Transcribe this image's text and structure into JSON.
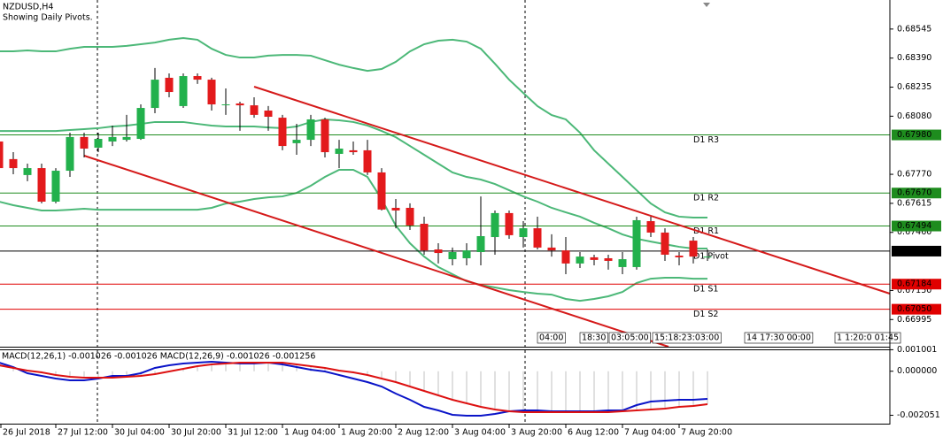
{
  "chart_data": {
    "type": "candlestick",
    "title": "NZDUSD,H4",
    "subtitle": "Showing Daily Pivots.",
    "categories": [
      "26 Jul 2018",
      null,
      null,
      null,
      "27 Jul 12:00",
      null,
      null,
      null,
      "30 Jul 04:00",
      null,
      null,
      null,
      "30 Jul 20:00",
      null,
      null,
      null,
      "31 Jul 12:00",
      null,
      null,
      null,
      "1 Aug 04:00",
      null,
      null,
      null,
      "1 Aug 20:00",
      null,
      null,
      null,
      "2 Aug 12:00",
      null,
      null,
      null,
      "3 Aug 04:00",
      null,
      null,
      null,
      "3 Aug 20:00",
      null,
      null,
      null,
      "6 Aug 12:00",
      null,
      null,
      null,
      "7 Aug 04:00",
      null,
      null,
      null,
      "7 Aug 20:00",
      null,
      null
    ],
    "open": [
      0.67945,
      0.67851,
      0.67766,
      0.67803,
      0.67624,
      0.67789,
      0.67969,
      0.67912,
      0.67945,
      0.67954,
      0.67959,
      0.68124,
      0.68285,
      0.68134,
      0.68294,
      0.68275,
      0.68143,
      0.68148,
      0.68138,
      0.6811,
      0.68072,
      0.67936,
      0.67954,
      0.68063,
      0.67879,
      0.67898,
      0.67898,
      0.6778,
      0.67591,
      0.67591,
      0.67506,
      0.67369,
      0.67317,
      0.67322,
      0.67355,
      0.67435,
      0.67563,
      0.67435,
      0.67482,
      0.67379,
      0.67364,
      0.67294,
      0.67327,
      0.67322,
      0.67275,
      0.67275,
      0.6752,
      0.67459,
      0.67336,
      0.67416,
      0.67331
    ],
    "high": [
      0.67969,
      0.67888,
      0.67827,
      0.67827,
      0.67803,
      0.67992,
      0.67992,
      0.67992,
      0.6803,
      0.68087,
      0.68143,
      0.68337,
      0.68308,
      0.68308,
      0.68308,
      0.68285,
      0.68228,
      0.68157,
      0.68181,
      0.68134,
      0.68087,
      0.68039,
      0.68087,
      0.68072,
      0.67954,
      0.67945,
      0.67954,
      0.67803,
      0.67638,
      0.67615,
      0.67544,
      0.67402,
      0.67379,
      0.67402,
      0.67652,
      0.67577,
      0.67577,
      0.6752,
      0.67544,
      0.6745,
      0.67435,
      0.67355,
      0.67341,
      0.67341,
      0.67355,
      0.67544,
      0.67544,
      0.67482,
      0.67355,
      0.67435,
      0.67369
    ],
    "low": [
      0.6778,
      0.6777,
      0.67733,
      0.67615,
      0.67615,
      0.67756,
      0.6786,
      0.67888,
      0.67921,
      0.67945,
      0.67954,
      0.68096,
      0.68181,
      0.68124,
      0.68252,
      0.6811,
      0.68087,
      0.68002,
      0.68072,
      0.68002,
      0.67898,
      0.67874,
      0.67921,
      0.6786,
      0.67803,
      0.67874,
      0.67766,
      0.67577,
      0.67482,
      0.67473,
      0.67341,
      0.67294,
      0.67284,
      0.67284,
      0.67284,
      0.67341,
      0.67426,
      0.67379,
      0.67369,
      0.67331,
      0.67237,
      0.6727,
      0.67284,
      0.67261,
      0.67237,
      0.67261,
      0.67435,
      0.67308,
      0.67284,
      0.67294,
      0.67308
    ],
    "close": [
      0.67803,
      0.67803,
      0.67803,
      0.67624,
      0.67789,
      0.67969,
      0.67907,
      0.67959,
      0.67969,
      0.67969,
      0.68124,
      0.68275,
      0.68209,
      0.68294,
      0.68275,
      0.68143,
      0.68143,
      0.68138,
      0.68087,
      0.68077,
      0.67921,
      0.67954,
      0.68063,
      0.67888,
      0.67907,
      0.67888,
      0.6778,
      0.67582,
      0.67577,
      0.67497,
      0.67364,
      0.6735,
      0.67355,
      0.67364,
      0.6744,
      0.67563,
      0.67445,
      0.67482,
      0.67379,
      0.67364,
      0.67294,
      0.67331,
      0.67313,
      0.67308,
      0.67317,
      0.67525,
      0.67459,
      0.67341,
      0.67327,
      0.67331,
      0.67331
    ],
    "up_color": "#22b14c",
    "down_color": "#e31a1c",
    "bands": [
      {
        "color": "#4cb878",
        "values": [
          0.68426,
          0.68426,
          0.68431,
          0.68426,
          0.68426,
          0.6844,
          0.6845,
          0.6845,
          0.6845,
          0.68455,
          0.68464,
          0.68473,
          0.68488,
          0.68497,
          0.68488,
          0.6844,
          0.68407,
          0.68393,
          0.68393,
          0.68403,
          0.68407,
          0.68407,
          0.68403,
          0.68379,
          0.68355,
          0.68337,
          0.68322,
          0.68332,
          0.6837,
          0.68426,
          0.68464,
          0.68483,
          0.68488,
          0.68478,
          0.6844,
          0.6836,
          0.68275,
          0.68204,
          0.68134,
          0.68086,
          0.68063,
          0.67992,
          0.67898,
          0.67827,
          0.67756,
          0.67685,
          0.67614,
          0.67567,
          0.67544,
          0.67539,
          0.67539
        ]
      },
      {
        "color": "#4cb878",
        "values": [
          0.68001,
          0.68001,
          0.68001,
          0.68001,
          0.68001,
          0.68006,
          0.68011,
          0.68016,
          0.68025,
          0.6803,
          0.68039,
          0.68049,
          0.68049,
          0.68049,
          0.68039,
          0.6803,
          0.68025,
          0.68025,
          0.68025,
          0.6802,
          0.68016,
          0.68025,
          0.68049,
          0.68063,
          0.68058,
          0.68049,
          0.6803,
          0.68001,
          0.67968,
          0.67921,
          0.67874,
          0.67827,
          0.6778,
          0.67756,
          0.67742,
          0.67718,
          0.67685,
          0.67652,
          0.67624,
          0.67591,
          0.67567,
          0.67544,
          0.67511,
          0.67482,
          0.67449,
          0.67426,
          0.67411,
          0.67397,
          0.67383,
          0.67374,
          0.67374
        ]
      },
      {
        "color": "#4cb878",
        "values": [
          0.67624,
          0.67605,
          0.67591,
          0.67577,
          0.67577,
          0.67581,
          0.67586,
          0.67581,
          0.67581,
          0.67581,
          0.67581,
          0.67581,
          0.67581,
          0.67581,
          0.67581,
          0.67591,
          0.67614,
          0.67624,
          0.67638,
          0.67647,
          0.67652,
          0.67671,
          0.67709,
          0.67756,
          0.67794,
          0.67794,
          0.67756,
          0.67638,
          0.67496,
          0.67402,
          0.67331,
          0.67275,
          0.67237,
          0.67199,
          0.6718,
          0.67166,
          0.67152,
          0.67142,
          0.67133,
          0.67128,
          0.67105,
          0.67095,
          0.67105,
          0.67119,
          0.67142,
          0.6719,
          0.67213,
          0.67218,
          0.67218,
          0.67213,
          0.67213
        ]
      }
    ],
    "ylim": [
      0.6685,
      0.687
    ],
    "yticks": [
      0.68545,
      {
        "value": 0.6839,
        "label": "0.68390"
      },
      0.68235,
      {
        "value": 0.6808,
        "label": "0.68080"
      },
      {
        "value": 0.6777,
        "label": "0.67770"
      },
      0.67615,
      {
        "value": 0.6746,
        "label": "0.67460"
      },
      {
        "value": 0.6715,
        "label": "0.67150"
      },
      0.66995
    ],
    "pivots": {
      "names": [
        "D1 R3",
        "D1 R2",
        "D1 R1",
        "D1 Pivot",
        "D1 S1",
        "D1 S2"
      ],
      "values": [
        0.6798,
        0.6767,
        0.67494,
        0.6736,
        0.67184,
        0.6705
      ],
      "value_labels": [
        "0.67980",
        "0.67670",
        "0.67494",
        "0.67360",
        "0.67184",
        "0.67050"
      ],
      "colors": [
        "#1e8c1e",
        "#1e8c1e",
        "#1e8c1e",
        "#000000",
        "#e00000",
        "#e00000"
      ]
    },
    "session_labels": [
      "04:00",
      "18:30",
      "03:05:00",
      "15:18:23:03:00",
      "14 17:30 00:00",
      "1 1:20:0 01:45"
    ],
    "macd": {
      "title": "MACD(12,26,1) -0.001026 -0.001026 MACD(12,26,9) -0.001026 -0.001256",
      "ylim": [
        -0.0024,
        0.0011
      ],
      "yticks": [
        0.001001,
        {
          "value": 0,
          "label": "0.000000"
        },
        -0.002051
      ],
      "histogram_color": "#c0c0c0",
      "series": [
        {
          "color": "#0a14c8",
          "values": [
            0.0004,
            0.000194,
            -9.4e-05,
            -0.000218,
            -0.000341,
            -0.000424,
            -0.000424,
            -0.000341,
            -0.000218,
            -0.000218,
            -9.4e-05,
            0.000153,
            0.000276,
            0.000359,
            0.0004,
            0.000441,
            0.0004,
            0.000359,
            0.000359,
            0.0004,
            0.000318,
            0.000194,
            7e-05,
            -1.2e-05,
            -0.000177,
            -0.000341,
            -0.000506,
            -0.000712,
            -0.001041,
            -0.00133,
            -0.001659,
            -0.001824,
            -0.00203,
            -0.002071,
            -0.002071,
            -0.001989,
            -0.001865,
            -0.001824,
            -0.001824,
            -0.001865,
            -0.001865,
            -0.001865,
            -0.001865,
            -0.001824,
            -0.001824,
            -0.001577,
            -0.001412,
            -0.001371,
            -0.00133,
            -0.00133,
            -0.001288
          ]
        },
        {
          "color": "#dd1111",
          "values": [
            0.000276,
            0.000153,
            2.9e-05,
            -5.3e-05,
            -0.000177,
            -0.000259,
            -0.0003,
            -0.0003,
            -0.0003,
            -0.000259,
            -0.000218,
            -0.000135,
            -1.2e-05,
            0.000112,
            0.000235,
            0.000318,
            0.000359,
            0.0004,
            0.0004,
            0.0004,
            0.0004,
            0.000318,
            0.000235,
            0.000153,
            2.9e-05,
            -5.3e-05,
            -0.000177,
            -0.000341,
            -0.000506,
            -0.000712,
            -0.000918,
            -0.001124,
            -0.00133,
            -0.001494,
            -0.001659,
            -0.001783,
            -0.001865,
            -0.001906,
            -0.001906,
            -0.001906,
            -0.001906,
            -0.001906,
            -0.001906,
            -0.001906,
            -0.001865,
            -0.001824,
            -0.001783,
            -0.001741,
            -0.001659,
            -0.001618,
            -0.001536
          ]
        }
      ]
    }
  }
}
